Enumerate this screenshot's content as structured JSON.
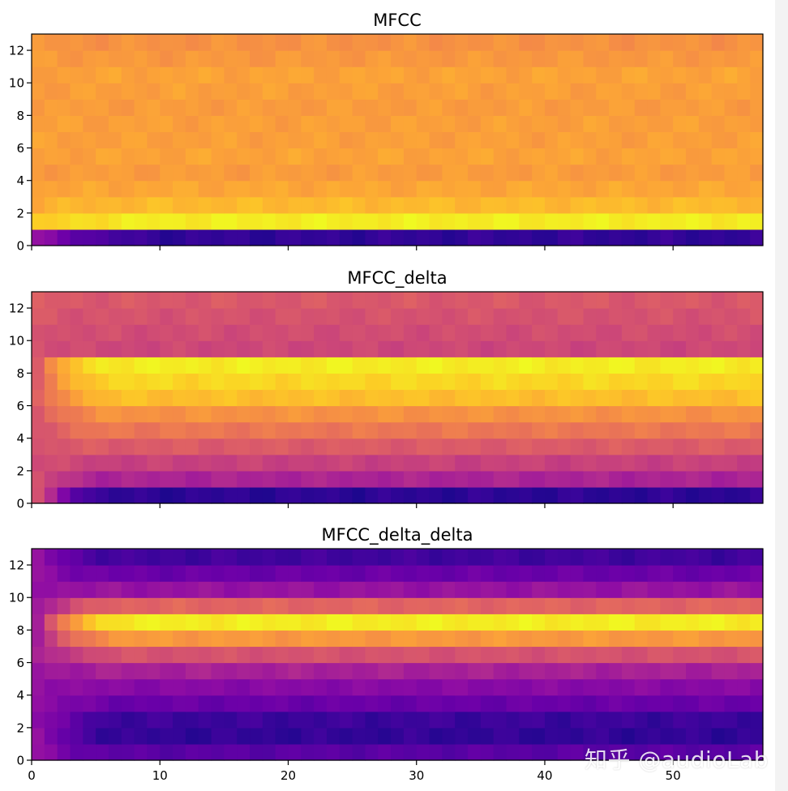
{
  "watermark": "知乎 @audioLab",
  "chart_data": [
    {
      "type": "heatmap",
      "title": "MFCC",
      "colormap": "plasma",
      "x_range": [
        0,
        57
      ],
      "y_range": [
        0,
        13
      ],
      "rows": 13,
      "cols": 57,
      "yticks": [
        0,
        2,
        4,
        6,
        8,
        10,
        12
      ],
      "xticks": [
        0,
        10,
        20,
        30,
        40,
        50
      ],
      "show_xtick_labels": false,
      "row_levels": [
        0.07,
        0.97,
        0.85,
        0.8,
        0.77,
        0.79,
        0.78,
        0.78,
        0.77,
        0.78,
        0.79,
        0.76,
        0.74
      ],
      "row_start_levels": [
        0.3,
        0.88,
        0.82,
        0.79,
        0.77,
        0.78,
        0.78,
        0.78,
        0.77,
        0.77,
        0.78,
        0.77,
        0.75
      ],
      "ramp_cols": 10
    },
    {
      "type": "heatmap",
      "title": "MFCC_delta",
      "colormap": "plasma",
      "x_range": [
        0,
        57
      ],
      "y_range": [
        0,
        13
      ],
      "rows": 13,
      "cols": 57,
      "yticks": [
        0,
        2,
        4,
        6,
        8,
        10,
        12
      ],
      "xticks": [
        0,
        10,
        20,
        30,
        40,
        50
      ],
      "show_xtick_labels": false,
      "row_levels": [
        0.06,
        0.38,
        0.48,
        0.57,
        0.66,
        0.74,
        0.86,
        0.92,
        0.97,
        0.5,
        0.52,
        0.54,
        0.56
      ],
      "row_start_levels": [
        0.52,
        0.52,
        0.53,
        0.54,
        0.55,
        0.56,
        0.57,
        0.58,
        0.59,
        0.54,
        0.55,
        0.56,
        0.57
      ],
      "ramp_cols": 6
    },
    {
      "type": "heatmap",
      "title": "MFCC_delta_delta",
      "colormap": "plasma",
      "x_range": [
        0,
        57
      ],
      "y_range": [
        0,
        13
      ],
      "rows": 13,
      "cols": 57,
      "yticks": [
        0,
        2,
        4,
        6,
        8,
        10,
        12
      ],
      "xticks": [
        0,
        10,
        20,
        30,
        40,
        50
      ],
      "xtick_labels": [
        "0",
        "10",
        "20",
        "30",
        "40",
        "50"
      ],
      "show_xtick_labels": true,
      "row_levels": [
        0.16,
        0.07,
        0.09,
        0.2,
        0.28,
        0.37,
        0.54,
        0.76,
        0.97,
        0.6,
        0.32,
        0.2,
        0.1
      ],
      "row_start_levels": [
        0.3,
        0.3,
        0.3,
        0.31,
        0.32,
        0.33,
        0.35,
        0.36,
        0.38,
        0.34,
        0.32,
        0.31,
        0.3
      ],
      "ramp_cols": 7
    }
  ]
}
